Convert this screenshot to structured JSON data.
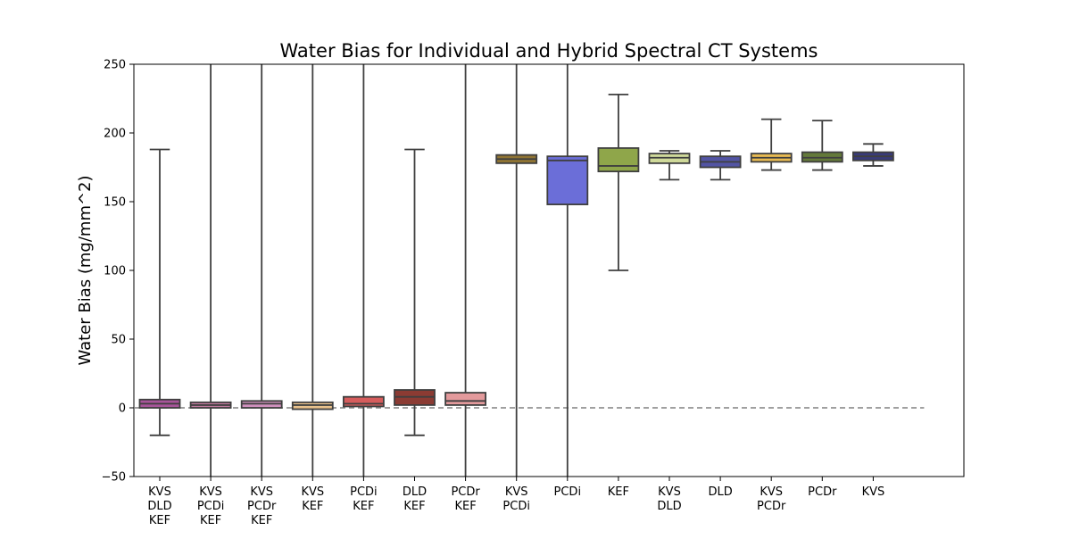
{
  "chart_data": {
    "type": "box",
    "title": "Water Bias for Individual and Hybrid Spectral CT Systems",
    "xlabel": "",
    "ylabel": "Water Bias (mg/mm^2)",
    "ylim": [
      -50,
      250
    ],
    "yticks": [
      "−50",
      "0",
      "50",
      "100",
      "150",
      "200",
      "250"
    ],
    "ytick_values": [
      -50,
      0,
      50,
      100,
      150,
      200,
      250
    ],
    "reference_line": {
      "y": 0,
      "style": "dashed",
      "color": "#808080"
    },
    "grid": false,
    "legend": "none",
    "categories": [
      {
        "lines": [
          "KVS",
          "DLD",
          "KEF"
        ],
        "color": "#a8559a",
        "whisker_low": -20,
        "q1": 0,
        "median": 3,
        "q3": 6,
        "whisker_high": 188
      },
      {
        "lines": [
          "KVS",
          "PCDi",
          "KEF"
        ],
        "color": "#c27ba0",
        "whisker_low": -50,
        "q1": 0,
        "median": 2,
        "q3": 4,
        "whisker_high": 250
      },
      {
        "lines": [
          "KVS",
          "PCDr",
          "KEF"
        ],
        "color": "#d191be",
        "whisker_low": -50,
        "q1": 0,
        "median": 3,
        "q3": 5,
        "whisker_high": 250
      },
      {
        "lines": [
          "KVS",
          "KEF"
        ],
        "color": "#e9c28c",
        "whisker_low": -50,
        "q1": -1,
        "median": 2,
        "q3": 4,
        "whisker_high": 250
      },
      {
        "lines": [
          "PCDi",
          "KEF"
        ],
        "color": "#d65c5c",
        "whisker_low": -50,
        "q1": 1,
        "median": 3,
        "q3": 8,
        "whisker_high": 250
      },
      {
        "lines": [
          "DLD",
          "KEF"
        ],
        "color": "#8b3b33",
        "whisker_low": -20,
        "q1": 2,
        "median": 8,
        "q3": 13,
        "whisker_high": 188
      },
      {
        "lines": [
          "PCDr",
          "KEF"
        ],
        "color": "#e39a9c",
        "whisker_low": -50,
        "q1": 2,
        "median": 5,
        "q3": 11,
        "whisker_high": 250
      },
      {
        "lines": [
          "KVS",
          "PCDi"
        ],
        "color": "#8f7433",
        "whisker_low": -50,
        "q1": 178,
        "median": 181,
        "q3": 184,
        "whisker_high": 250
      },
      {
        "lines": [
          "PCDi"
        ],
        "color": "#6b6ed8",
        "whisker_low": -50,
        "q1": 148,
        "median": 180,
        "q3": 183,
        "whisker_high": 250
      },
      {
        "lines": [
          "KEF"
        ],
        "color": "#8fa64a",
        "whisker_low": 100,
        "q1": 172,
        "median": 176,
        "q3": 189,
        "whisker_high": 228
      },
      {
        "lines": [
          "KVS",
          "DLD"
        ],
        "color": "#cfd99a",
        "whisker_low": 166,
        "q1": 178,
        "median": 182,
        "q3": 185,
        "whisker_high": 187
      },
      {
        "lines": [
          "DLD"
        ],
        "color": "#5254a3",
        "whisker_low": 166,
        "q1": 175,
        "median": 179,
        "q3": 183,
        "whisker_high": 187
      },
      {
        "lines": [
          "KVS",
          "PCDr"
        ],
        "color": "#e7ba52",
        "whisker_low": 173,
        "q1": 179,
        "median": 182,
        "q3": 185,
        "whisker_high": 210
      },
      {
        "lines": [
          "PCDr"
        ],
        "color": "#637939",
        "whisker_low": 173,
        "q1": 179,
        "median": 182,
        "q3": 186,
        "whisker_high": 209
      },
      {
        "lines": [
          "KVS"
        ],
        "color": "#393b79",
        "whisker_low": 176,
        "q1": 180,
        "median": 183,
        "q3": 186,
        "whisker_high": 192
      }
    ]
  }
}
